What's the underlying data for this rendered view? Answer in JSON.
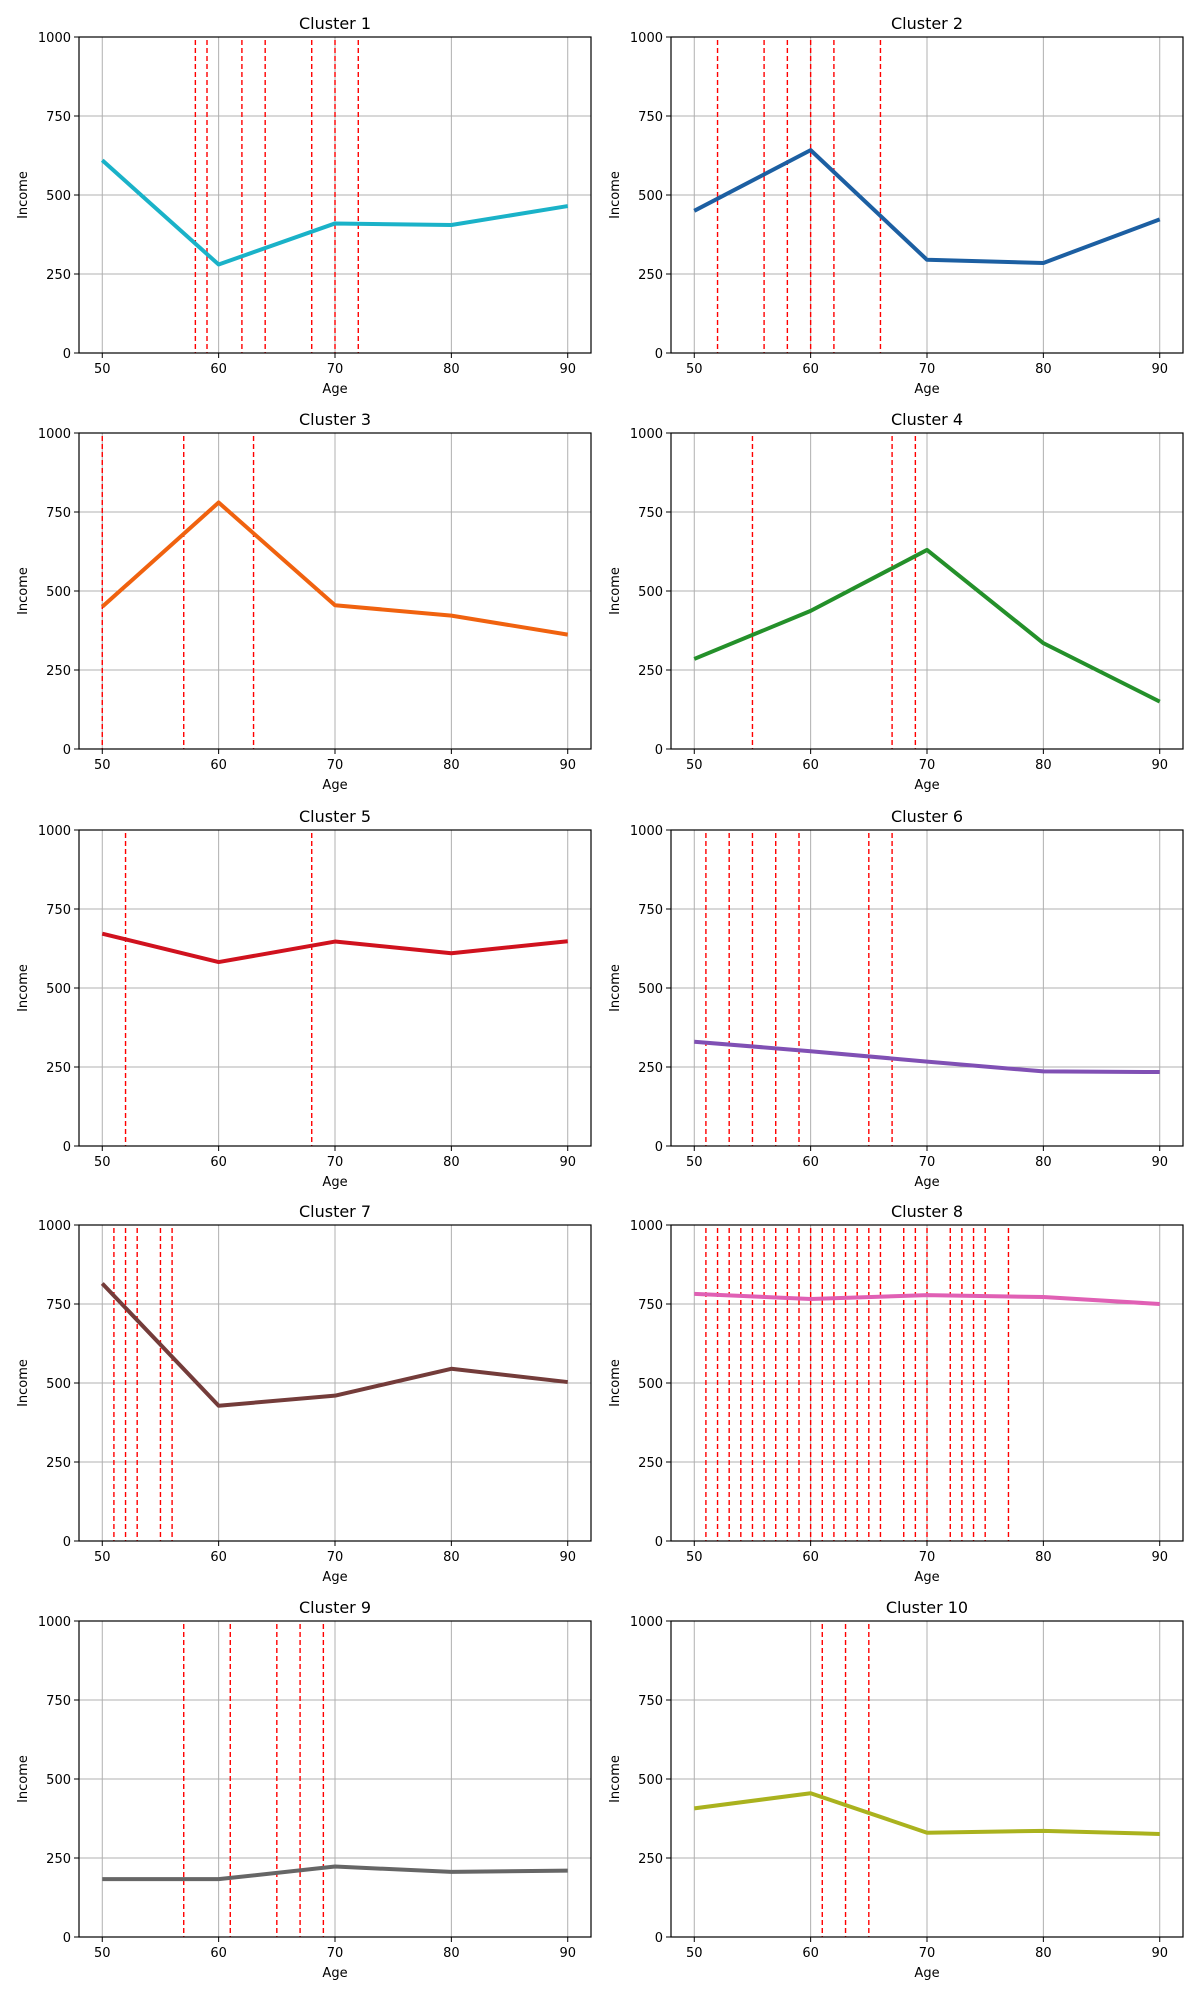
{
  "chart_data": [
    {
      "type": "line",
      "title": "Cluster 1",
      "xlabel": "Age",
      "ylabel": "Income",
      "color": "#1ab2c8",
      "x": [
        50,
        60,
        70,
        80,
        90
      ],
      "y": [
        610,
        280,
        410,
        405,
        465
      ],
      "markers": [
        58,
        59,
        62,
        64,
        68,
        70,
        72
      ]
    },
    {
      "type": "line",
      "title": "Cluster 2",
      "xlabel": "Age",
      "ylabel": "Income",
      "color": "#1c5fa2",
      "x": [
        50,
        60,
        70,
        80,
        90
      ],
      "y": [
        450,
        642,
        295,
        285,
        423
      ],
      "markers": [
        52,
        56,
        58,
        60,
        62,
        66
      ]
    },
    {
      "type": "line",
      "title": "Cluster 3",
      "xlabel": "Age",
      "ylabel": "Income",
      "color": "#f0620f",
      "x": [
        50,
        60,
        70,
        80,
        90
      ],
      "y": [
        450,
        780,
        455,
        422,
        362
      ],
      "markers": [
        50,
        57,
        63
      ]
    },
    {
      "type": "line",
      "title": "Cluster 4",
      "xlabel": "Age",
      "ylabel": "Income",
      "color": "#24902a",
      "x": [
        50,
        60,
        70,
        80,
        90
      ],
      "y": [
        285,
        437,
        630,
        335,
        150
      ],
      "markers": [
        55,
        67,
        69
      ]
    },
    {
      "type": "line",
      "title": "Cluster 5",
      "xlabel": "Age",
      "ylabel": "Income",
      "color": "#d0121e",
      "x": [
        50,
        60,
        70,
        80,
        90
      ],
      "y": [
        672,
        582,
        647,
        610,
        648
      ],
      "markers": [
        52,
        68
      ]
    },
    {
      "type": "line",
      "title": "Cluster 6",
      "xlabel": "Age",
      "ylabel": "Income",
      "color": "#8050b4",
      "x": [
        50,
        60,
        70,
        80,
        90
      ],
      "y": [
        330,
        300,
        267,
        236,
        234
      ],
      "markers": [
        51,
        53,
        55,
        57,
        59,
        65,
        67
      ]
    },
    {
      "type": "line",
      "title": "Cluster 7",
      "xlabel": "Age",
      "ylabel": "Income",
      "color": "#743c3a",
      "x": [
        50,
        60,
        70,
        80,
        90
      ],
      "y": [
        815,
        428,
        460,
        545,
        503
      ],
      "markers": [
        51,
        52,
        53,
        55,
        56
      ]
    },
    {
      "type": "line",
      "title": "Cluster 8",
      "xlabel": "Age",
      "ylabel": "Income",
      "color": "#e060b4",
      "x": [
        50,
        60,
        70,
        80,
        90
      ],
      "y": [
        782,
        766,
        778,
        772,
        750
      ],
      "markers": [
        51,
        52,
        53,
        54,
        55,
        56,
        57,
        58,
        59,
        60,
        61,
        62,
        63,
        64,
        65,
        66,
        68,
        69,
        70,
        72,
        73,
        74,
        75,
        77
      ]
    },
    {
      "type": "line",
      "title": "Cluster 9",
      "xlabel": "Age",
      "ylabel": "Income",
      "color": "#666666",
      "x": [
        50,
        60,
        70,
        80,
        90
      ],
      "y": [
        183,
        183,
        223,
        206,
        210
      ],
      "markers": [
        57,
        61,
        65,
        67,
        69
      ]
    },
    {
      "type": "line",
      "title": "Cluster 10",
      "xlabel": "Age",
      "ylabel": "Income",
      "color": "#aab21e",
      "x": [
        50,
        60,
        70,
        80,
        90
      ],
      "y": [
        407,
        455,
        330,
        336,
        326
      ],
      "markers": [
        61,
        63,
        65
      ]
    }
  ],
  "axes": {
    "xlim": [
      48,
      92
    ],
    "ylim": [
      0,
      1000
    ],
    "xticks": [
      "50",
      "60",
      "70",
      "80",
      "90"
    ],
    "yticks": [
      "0",
      "250",
      "500",
      "750",
      "1000"
    ],
    "grid": true,
    "marker_color": "#ff0000",
    "marker_style": "dashed vertical lines"
  }
}
